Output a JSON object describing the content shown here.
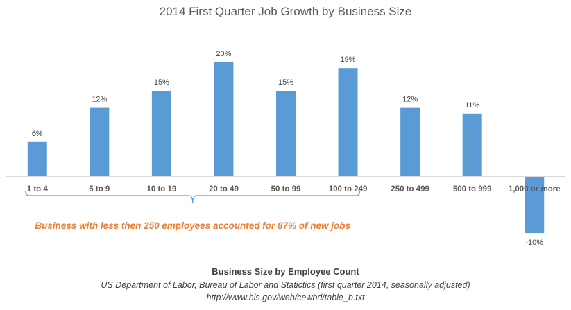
{
  "chart_data": {
    "type": "bar",
    "title": "2014 First Quarter Job Growth by Business Size",
    "categories": [
      "1 to 4",
      "5 to 9",
      "10 to 19",
      "20 to 49",
      "50 to 99",
      "100 to 249",
      "250 to 499",
      "500 to 999",
      "1,000 or more"
    ],
    "values": [
      6,
      12,
      15,
      20,
      15,
      19,
      12,
      11,
      -10
    ],
    "value_labels": [
      "6%",
      "12%",
      "15%",
      "20%",
      "15%",
      "19%",
      "12%",
      "11%",
      "-10%"
    ],
    "ylim": [
      -10,
      20
    ],
    "xlabel": "Business Size by Employee Count",
    "ylabel": "",
    "grid": false,
    "annotation": "Business with less then 250 employees accounted for 87% of new jobs",
    "bracket_span": [
      "1 to 4",
      "100 to 249"
    ],
    "source_line": "US Department of Labor,  Bureau of Labor and Statictics (first quarter 2014, seasonally adjusted)",
    "source_url": "http://www.bls.gov/web/cewbd/table_b.txt",
    "colors": {
      "bar": "#5b9bd5",
      "axis": "#d9d9d9",
      "annotation": "#ed7d31",
      "bracket": "#5b9bd5"
    }
  }
}
